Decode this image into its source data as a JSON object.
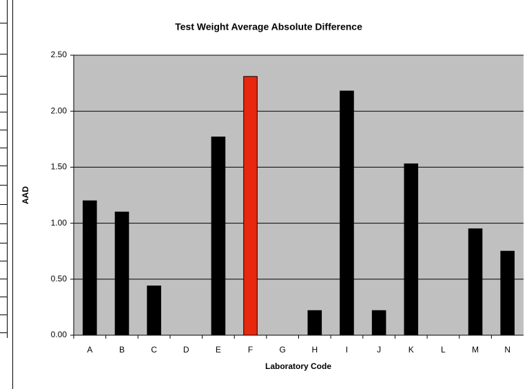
{
  "chart_data": {
    "type": "bar",
    "title": "Test Weight Average Absolute Difference",
    "x_label": "Laboratory Code",
    "y_label": "AAD",
    "categories": [
      "A",
      "B",
      "C",
      "D",
      "E",
      "F",
      "G",
      "H",
      "I",
      "J",
      "K",
      "L",
      "M",
      "N"
    ],
    "values": [
      1.2,
      1.1,
      0.44,
      0,
      1.77,
      2.31,
      0,
      0.22,
      2.18,
      0.22,
      1.53,
      0,
      0.95,
      0.75
    ],
    "colors": [
      "#000000",
      "#000000",
      "#000000",
      "#000000",
      "#000000",
      "#e8280e",
      "#000000",
      "#000000",
      "#000000",
      "#000000",
      "#000000",
      "#000000",
      "#000000",
      "#000000"
    ],
    "ylim": [
      0,
      2.5
    ],
    "yticks": [
      {
        "value": 0,
        "label": "0.00"
      },
      {
        "value": 0.5,
        "label": "0.50"
      },
      {
        "value": 1,
        "label": "1.00"
      },
      {
        "value": 1.5,
        "label": "1.50"
      },
      {
        "value": 2,
        "label": "2.00"
      },
      {
        "value": 2.5,
        "label": "2.50"
      }
    ],
    "grid": true,
    "plot_background": "#c0c0c0"
  }
}
